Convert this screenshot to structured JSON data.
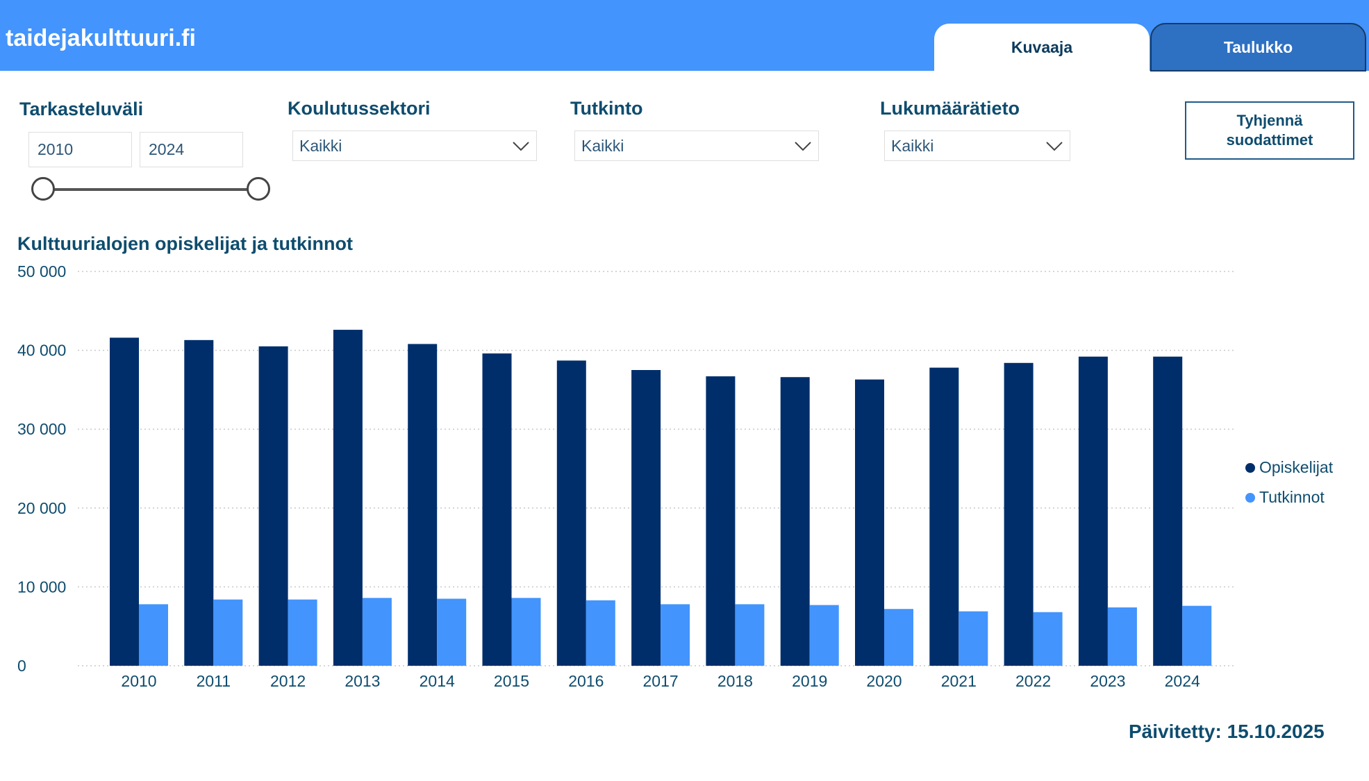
{
  "header": {
    "site_name": "taidejakulttuuri.fi",
    "tabs": [
      {
        "label": "Kuvaaja",
        "active": true
      },
      {
        "label": "Taulukko",
        "active": false
      }
    ]
  },
  "filters": {
    "period": {
      "label": "Tarkasteluväli",
      "start": "2010",
      "end": "2024"
    },
    "sector": {
      "label": "Koulutussektori",
      "value": "Kaikki"
    },
    "degree": {
      "label": "Tutkinto",
      "value": "Kaikki"
    },
    "count_info": {
      "label": "Lukumäärätieto",
      "value": "Kaikki"
    },
    "clear_button": "Tyhjennä suodattimet"
  },
  "colors": {
    "header_bg": "#4394fc",
    "opiskelijat": "#002e6b",
    "tutkinnot": "#4394fc"
  },
  "chart_data": {
    "type": "bar",
    "title": "Kulttuurialojen opiskelijat ja tutkinnot",
    "categories": [
      "2010",
      "2011",
      "2012",
      "2013",
      "2014",
      "2015",
      "2016",
      "2017",
      "2018",
      "2019",
      "2020",
      "2021",
      "2022",
      "2023",
      "2024"
    ],
    "series": [
      {
        "name": "Opiskelijat",
        "values": [
          41600,
          41300,
          40500,
          42600,
          40800,
          39600,
          38700,
          37500,
          36700,
          36600,
          36300,
          37800,
          38400,
          39200,
          39200
        ]
      },
      {
        "name": "Tutkinnot",
        "values": [
          7800,
          8400,
          8400,
          8600,
          8500,
          8600,
          8300,
          7800,
          7800,
          7700,
          7200,
          6900,
          6800,
          7400,
          7600
        ]
      }
    ],
    "ylim": [
      0,
      50000
    ],
    "yticks": [
      0,
      10000,
      20000,
      30000,
      40000,
      50000
    ],
    "ytick_labels": [
      "0",
      "10 000",
      "20 000",
      "30 000",
      "40 000",
      "50 000"
    ],
    "grid": true,
    "legend_position": "right"
  },
  "updated": "Päivitetty: 15.10.2025"
}
